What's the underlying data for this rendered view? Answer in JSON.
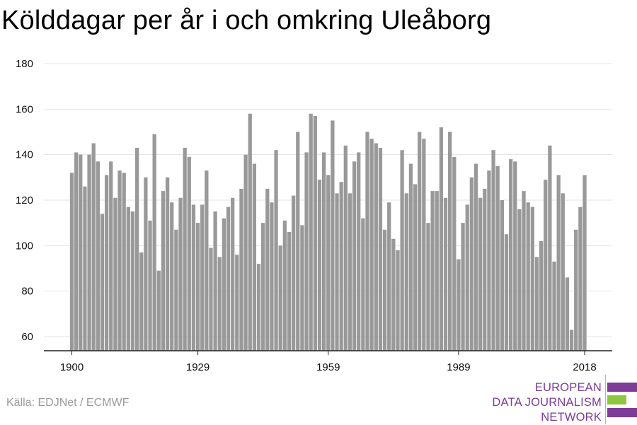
{
  "title": "Kölddagar per år i och omkring Uleåborg",
  "source": "Källa: EDJNet / ECMWF",
  "logo": {
    "lines": [
      "EUROPEAN",
      "DATA JOURNALISM",
      "NETWORK"
    ],
    "colors": {
      "text": "#7d3c98",
      "bar_purple": "#7d3c98",
      "bar_green": "#8dc63f"
    }
  },
  "chart_data": {
    "type": "bar",
    "title": "Kölddagar per år i och omkring Uleåborg",
    "xlabel": "",
    "ylabel": "",
    "x_tick_labels": [
      "1900",
      "1929",
      "1959",
      "1989",
      "2018"
    ],
    "y_tick_labels": [
      "60",
      "80",
      "100",
      "120",
      "140",
      "160",
      "180"
    ],
    "ylim": [
      53,
      184
    ],
    "grid": true,
    "bar_color": "#999999",
    "x": [
      1900,
      1901,
      1902,
      1903,
      1904,
      1905,
      1906,
      1907,
      1908,
      1909,
      1910,
      1911,
      1912,
      1913,
      1914,
      1915,
      1916,
      1917,
      1918,
      1919,
      1920,
      1921,
      1922,
      1923,
      1924,
      1925,
      1926,
      1927,
      1928,
      1929,
      1930,
      1931,
      1932,
      1933,
      1934,
      1935,
      1936,
      1937,
      1938,
      1939,
      1940,
      1941,
      1942,
      1943,
      1944,
      1945,
      1946,
      1947,
      1948,
      1949,
      1950,
      1951,
      1952,
      1953,
      1954,
      1955,
      1956,
      1957,
      1958,
      1959,
      1960,
      1961,
      1962,
      1963,
      1964,
      1965,
      1966,
      1967,
      1968,
      1969,
      1970,
      1971,
      1972,
      1973,
      1974,
      1975,
      1976,
      1977,
      1978,
      1979,
      1980,
      1981,
      1982,
      1983,
      1984,
      1985,
      1986,
      1987,
      1988,
      1989,
      1990,
      1991,
      1992,
      1993,
      1994,
      1995,
      1996,
      1997,
      1998,
      1999,
      2000,
      2001,
      2002,
      2003,
      2004,
      2005,
      2006,
      2007,
      2008,
      2009,
      2010,
      2011,
      2012,
      2013,
      2014,
      2015,
      2016,
      2017,
      2018
    ],
    "values": [
      132,
      141,
      140,
      126,
      140,
      145,
      137,
      114,
      131,
      137,
      121,
      133,
      132,
      117,
      115,
      143,
      97,
      130,
      111,
      149,
      89,
      124,
      130,
      119,
      107,
      121,
      143,
      139,
      118,
      110,
      118,
      133,
      99,
      115,
      95,
      112,
      117,
      121,
      96,
      125,
      140,
      158,
      136,
      92,
      110,
      125,
      119,
      142,
      100,
      111,
      106,
      122,
      150,
      109,
      141,
      158,
      157,
      129,
      141,
      131,
      155,
      123,
      128,
      144,
      123,
      137,
      141,
      112,
      150,
      147,
      145,
      143,
      107,
      119,
      103,
      98,
      142,
      123,
      136,
      127,
      150,
      147,
      110,
      124,
      124,
      152,
      121,
      150,
      139,
      94,
      110,
      118,
      130,
      136,
      121,
      125,
      133,
      142,
      135,
      120,
      105,
      138,
      137,
      116,
      124,
      119,
      117,
      95,
      102,
      129,
      144,
      93,
      131,
      123,
      86,
      63,
      107,
      117,
      131
    ]
  }
}
